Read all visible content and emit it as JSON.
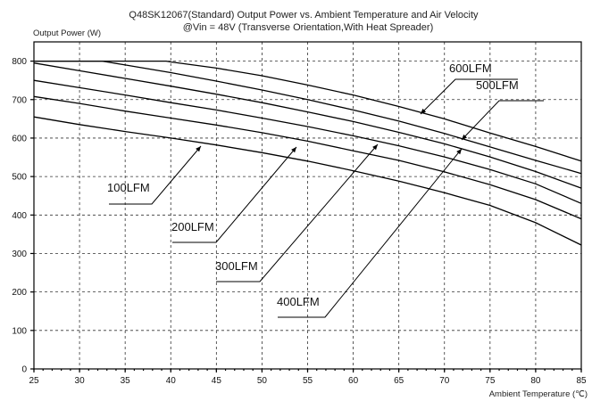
{
  "chart_data": {
    "type": "line",
    "title_line1": "Q48SK12067(Standard)   Output Power vs. Ambient Temperature and Air Velocity",
    "title_line2": "@Vin = 48V (Transverse Orientation,With Heat Spreader)",
    "ylabel": "Output Power (W)",
    "xlabel": "Ambient Temperature (℃)",
    "xlim": [
      25,
      85
    ],
    "ylim": [
      0,
      850
    ],
    "x_ticks": [
      25,
      30,
      35,
      40,
      45,
      50,
      55,
      60,
      65,
      70,
      75,
      80,
      85
    ],
    "y_ticks": [
      0,
      100,
      200,
      300,
      400,
      500,
      600,
      700,
      800
    ],
    "grid": true,
    "series": [
      {
        "name": "100LFM",
        "x": [
          25,
          30,
          35,
          40,
          45,
          50,
          55,
          60,
          65,
          70,
          75,
          80,
          85
        ],
        "y": [
          655,
          635,
          617,
          600,
          582,
          562,
          540,
          515,
          488,
          458,
          425,
          380,
          322
        ]
      },
      {
        "name": "200LFM",
        "x": [
          25,
          30,
          35,
          40,
          45,
          50,
          55,
          60,
          65,
          70,
          75,
          80,
          85
        ],
        "y": [
          708,
          690,
          670,
          652,
          634,
          614,
          592,
          567,
          542,
          512,
          479,
          440,
          390
        ]
      },
      {
        "name": "300LFM",
        "x": [
          25,
          30,
          35,
          40,
          45,
          50,
          55,
          60,
          65,
          70,
          75,
          80,
          85
        ],
        "y": [
          750,
          731,
          712,
          692,
          673,
          652,
          630,
          606,
          580,
          551,
          518,
          481,
          430
        ]
      },
      {
        "name": "400LFM",
        "x": [
          25,
          30,
          35,
          40,
          45,
          50,
          55,
          60,
          65,
          70,
          75,
          80,
          85
        ],
        "y": [
          795,
          775,
          755,
          735,
          714,
          692,
          668,
          643,
          615,
          585,
          551,
          513,
          470
        ]
      },
      {
        "name": "500LFM",
        "x": [
          25,
          30,
          32.5,
          35,
          40,
          45,
          50,
          55,
          60,
          65,
          70,
          75,
          80,
          85
        ],
        "y": [
          800,
          800,
          800,
          790,
          770,
          748,
          725,
          700,
          673,
          644,
          612,
          577,
          542,
          508
        ]
      },
      {
        "name": "600LFM",
        "x": [
          25,
          30,
          35,
          39.5,
          40,
          45,
          50,
          55,
          60,
          65,
          70,
          75,
          80,
          85
        ],
        "y": [
          800,
          800,
          800,
          800,
          798,
          782,
          762,
          738,
          712,
          682,
          650,
          613,
          578,
          540
        ]
      }
    ],
    "annotations": [
      {
        "text": "100LFM",
        "series": "100LFM"
      },
      {
        "text": "200LFM",
        "series": "200LFM"
      },
      {
        "text": "300LFM",
        "series": "300LFM"
      },
      {
        "text": "400LFM",
        "series": "400LFM"
      },
      {
        "text": "500LFM",
        "series": "500LFM"
      },
      {
        "text": "600LFM",
        "series": "600LFM"
      }
    ]
  }
}
